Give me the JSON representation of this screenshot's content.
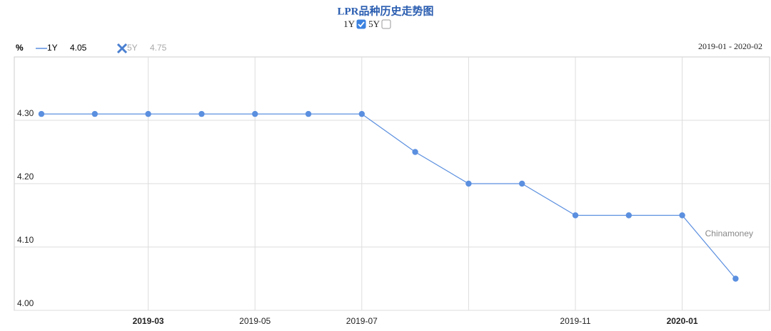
{
  "chart_data": {
    "type": "line",
    "title": "LPR品种历史走势图",
    "unit": "%",
    "range": "2019-01 - 2020-02",
    "watermark": "Chinamoney",
    "categories": [
      null,
      null,
      "2019-03",
      null,
      "2019-05",
      null,
      "2019-07",
      null,
      null,
      null,
      "2019-11",
      null,
      "2020-01",
      null
    ],
    "series": [
      {
        "name": "1Y",
        "color": "#5b8fdf",
        "visible": true,
        "last_value": 4.05,
        "values": [
          4.31,
          4.31,
          4.31,
          4.31,
          4.31,
          4.31,
          4.31,
          4.25,
          4.2,
          4.2,
          4.15,
          4.15,
          4.15,
          4.05
        ]
      },
      {
        "name": "5Y",
        "color": "#999999",
        "visible": false,
        "last_value": 4.75
      }
    ],
    "ylim": [
      4.0,
      4.4
    ],
    "yticks": [
      {
        "value": 4.0,
        "label": "4.00"
      },
      {
        "value": 4.1,
        "label": "4.10"
      },
      {
        "value": 4.2,
        "label": "4.20"
      },
      {
        "value": 4.3,
        "label": "4.30"
      }
    ],
    "grid": true
  }
}
